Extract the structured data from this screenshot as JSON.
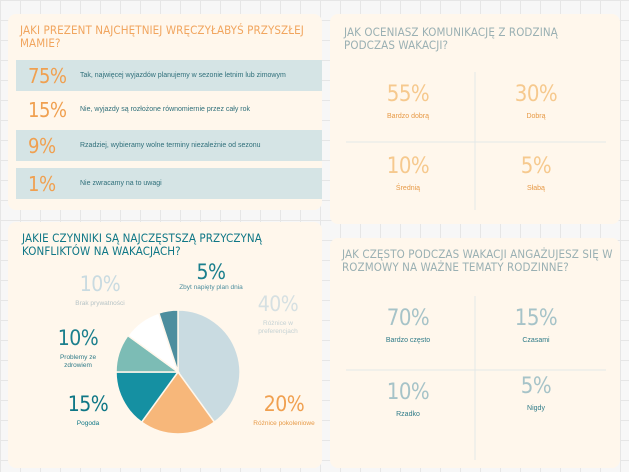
{
  "colors": {
    "panel_bg": "#fff7ec",
    "orange": "#f0a050",
    "light_orange": "#f6c98e",
    "teal": "#0f7786",
    "light_teal": "#a6c3c8",
    "gray_blue": "#9ab0b3"
  },
  "panel1": {
    "question": "JAKI PREZENT NAJCHĘTNIEJ WRĘCZYŁABYŚ PRZYSZŁEJ MAMIE?",
    "rows": [
      {
        "pct": "75%",
        "text": "Tak, najwięcej wyjazdów planujemy w sezonie letnim lub zimowym"
      },
      {
        "pct": "15%",
        "text": "Nie, wyjazdy są rozłożone równomiernie przez cały rok"
      },
      {
        "pct": "9%",
        "text": "Rzadziej, wybieramy wolne terminy niezależnie od sezonu"
      },
      {
        "pct": "1%",
        "text": "Nie zwracamy na to uwagi"
      }
    ]
  },
  "panel2": {
    "question": "JAK OCENIASZ KOMUNIKACJĘ Z RODZINĄ PODCZAS WAKACJI?",
    "items": [
      {
        "pct": "55%",
        "label": "Bardzo dobrą"
      },
      {
        "pct": "30%",
        "label": "Dobrą"
      },
      {
        "pct": "10%",
        "label": "Średnią"
      },
      {
        "pct": "5%",
        "label": "Słabą"
      }
    ]
  },
  "panel3": {
    "question": "JAKIE CZYNNIKI SĄ NAJCZĘSTSZĄ PRZYCZYNĄ KONFLIKTÓW NA WAKACJACH?",
    "labels": [
      {
        "pct": "10%",
        "label": "Brak prywatności"
      },
      {
        "pct": "5%",
        "label": "Zbyt napięty plan dnia"
      },
      {
        "pct": "40%",
        "label": "Różnice w preferencjach"
      },
      {
        "pct": "20%",
        "label": "Różnice pokoleniowe"
      },
      {
        "pct": "15%",
        "label": "Pogoda"
      },
      {
        "pct": "10%",
        "label": "Problemy ze zdrowiem"
      }
    ]
  },
  "panel4": {
    "question": "JAK CZĘSTO PODCZAS WAKACJI ANGAŻUJESZ SIĘ W ROZMOWY NA WAŻNE TEMATY RODZINNE?",
    "items": [
      {
        "pct": "70%",
        "label": "Bardzo często"
      },
      {
        "pct": "15%",
        "label": "Czasami"
      },
      {
        "pct": "10%",
        "label": "Rzadko"
      },
      {
        "pct": "5%",
        "label": "Nigdy"
      }
    ]
  },
  "chart_data": {
    "type": "pie",
    "title": "JAKIE CZYNNIKI SĄ NAJCZĘSTSZĄ PRZYCZYNĄ KONFLIKTÓW NA WAKACJACH?",
    "categories": [
      "Różnice w preferencjach",
      "Różnice pokoleniowe",
      "Pogoda",
      "Problemy ze zdrowiem",
      "Brak prywatności",
      "Zbyt napięty plan dnia"
    ],
    "values": [
      40,
      20,
      15,
      10,
      10,
      5
    ],
    "slice_colors": [
      "#c9dbe1",
      "#f7b77a",
      "#1590a2",
      "#7cbcb5",
      "#ffffff",
      "#4d8e9e"
    ]
  }
}
